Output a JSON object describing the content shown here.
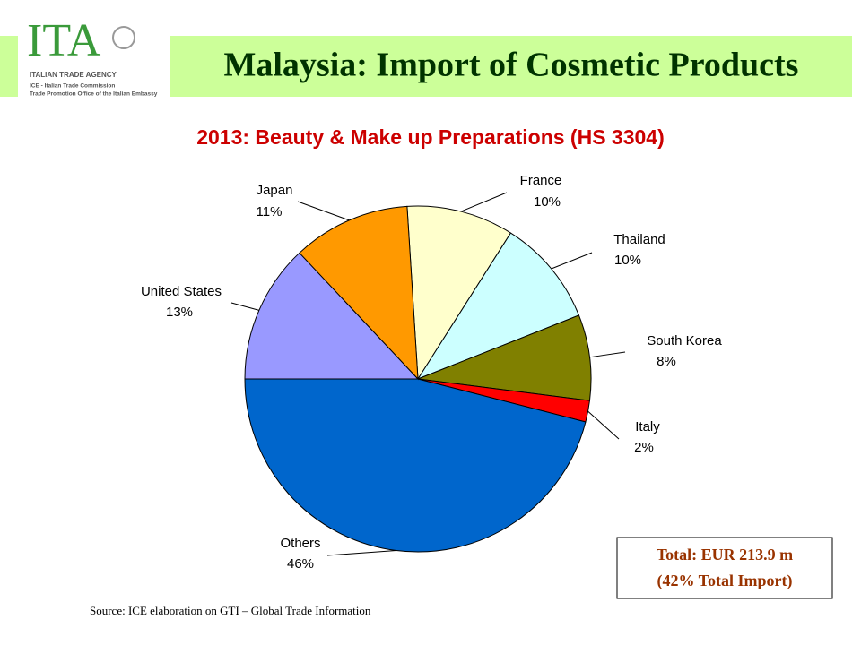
{
  "logo": {
    "mark": "ITA",
    "agency": "ITALIAN TRADE AGENCY",
    "line1": "ICE - Italian Trade Commission",
    "line2": "Trade Promotion Office of the Italian Embassy"
  },
  "header": {
    "title": "Malaysia: Import of Cosmetic Products"
  },
  "chart_data": {
    "type": "pie",
    "title": "2013: Beauty & Make up Preparations (HS 3304)",
    "categories": [
      "France",
      "Thailand",
      "South Korea",
      "Italy",
      "Others",
      "United States",
      "Japan"
    ],
    "values": [
      10,
      10,
      8,
      2,
      46,
      13,
      11
    ],
    "value_labels": [
      "10%",
      "10%",
      "8%",
      "2%",
      "46%",
      "13%",
      "11%"
    ],
    "colors": [
      "#ffffcc",
      "#ccffff",
      "#808000",
      "#ff0000",
      "#0066cc",
      "#9999ff",
      "#ff9900"
    ]
  },
  "total_box": {
    "line1": "Total: EUR 213.9 m",
    "line2": "(42% Total Import)"
  },
  "source": "Source: ICE elaboration on GTI – Global Trade Information"
}
